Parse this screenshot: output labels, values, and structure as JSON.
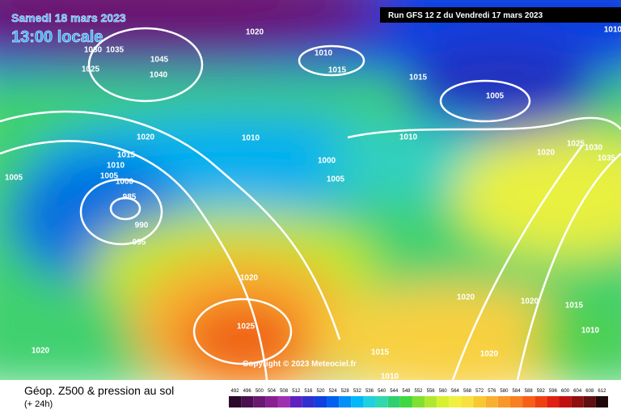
{
  "header": {
    "date": "Samedi 18 mars 2023",
    "time": "13:00 locale",
    "run": "Run GFS 12 Z du Vendredi 17 mars 2023",
    "copyright": "Copyright © 2023 Meteociel.fr"
  },
  "footer": {
    "title": "Géop. Z500 & pression au sol",
    "lead": "(+ 24h)"
  },
  "isobar_labels": [
    1020,
    1030,
    1035,
    1045,
    1040,
    1025,
    1010,
    1015,
    1015,
    1005,
    1020,
    1010,
    1010,
    1015,
    1010,
    1005,
    1000,
    1005,
    985,
    990,
    995,
    1000,
    1005,
    1020,
    1025,
    1030,
    1035,
    1020,
    1025,
    1020,
    1020,
    1015,
    1010,
    1015,
    1020,
    1010,
    1020,
    1010
  ],
  "scale": {
    "values": [
      492,
      496,
      500,
      504,
      508,
      512,
      516,
      520,
      524,
      528,
      532,
      536,
      540,
      544,
      548,
      552,
      556,
      560,
      564,
      568,
      572,
      576,
      580,
      584,
      588,
      592,
      596,
      600,
      604,
      608,
      612
    ],
    "colors": [
      "#2a0a2a",
      "#4a1050",
      "#6a1870",
      "#8a2090",
      "#a030b0",
      "#6020c0",
      "#3030d0",
      "#1040e0",
      "#0060f0",
      "#0090f8",
      "#00b8f8",
      "#20d0e0",
      "#30d8b0",
      "#30d070",
      "#40d840",
      "#80e030",
      "#b0e830",
      "#d8f030",
      "#f0f040",
      "#f8e040",
      "#f8c830",
      "#f8b030",
      "#f89828",
      "#f88020",
      "#f86018",
      "#f04010",
      "#e02010",
      "#c01010",
      "#901010",
      "#601010",
      "#200808"
    ]
  }
}
